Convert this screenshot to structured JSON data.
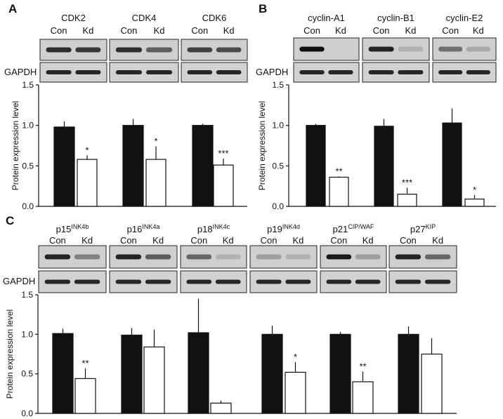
{
  "panels": [
    {
      "letter": "A",
      "ylabel": "Protein expression level",
      "loading_label": "GAPDH",
      "lane_labels": [
        "Con",
        "Kd"
      ],
      "proteins": [
        {
          "name": "CDK2",
          "sup": ""
        },
        {
          "name": "CDK4",
          "sup": ""
        },
        {
          "name": "CDK6",
          "sup": ""
        }
      ],
      "chart_data": {
        "type": "bar",
        "categories": [
          "CDK2",
          "CDK4",
          "CDK6"
        ],
        "series": [
          {
            "name": "Con",
            "values": [
              0.98,
              1.0,
              1.0
            ],
            "errors": [
              0.07,
              0.08,
              0.02
            ],
            "color": "#111111"
          },
          {
            "name": "Kd",
            "values": [
              0.58,
              0.58,
              0.51
            ],
            "errors": [
              0.05,
              0.16,
              0.08
            ],
            "color": "#ffffff"
          }
        ],
        "significance": [
          "*",
          "*",
          "***"
        ],
        "ylim": [
          0,
          1.5
        ],
        "yticks": [
          "0.0",
          "0.5",
          "1.0",
          "1.5"
        ]
      }
    },
    {
      "letter": "B",
      "ylabel": "Protein expression level",
      "loading_label": "GAPDH",
      "lane_labels": [
        "Con",
        "Kd"
      ],
      "proteins": [
        {
          "name": "cyclin-A1",
          "sup": ""
        },
        {
          "name": "cyclin-B1",
          "sup": ""
        },
        {
          "name": "cyclin-E2",
          "sup": ""
        }
      ],
      "chart_data": {
        "type": "bar",
        "categories": [
          "cyclin-A1",
          "cyclin-B1",
          "cyclin-E2"
        ],
        "series": [
          {
            "name": "Con",
            "values": [
              1.0,
              0.99,
              1.03
            ],
            "errors": [
              0.02,
              0.09,
              0.18
            ],
            "color": "#111111"
          },
          {
            "name": "Kd",
            "values": [
              0.36,
              0.15,
              0.09
            ],
            "errors": [
              0.01,
              0.08,
              0.05
            ],
            "color": "#ffffff"
          }
        ],
        "significance": [
          "**",
          "***",
          "*"
        ],
        "ylim": [
          0,
          1.5
        ],
        "yticks": [
          "0.0",
          "0.5",
          "1.0",
          "1.5"
        ]
      }
    },
    {
      "letter": "C",
      "ylabel": "Protein expression level",
      "loading_label": "GAPDH",
      "lane_labels": [
        "Con",
        "Kd"
      ],
      "proteins": [
        {
          "name": "p15",
          "sup": "INK4b"
        },
        {
          "name": "p16",
          "sup": "INK4a"
        },
        {
          "name": "p18",
          "sup": "INK4c"
        },
        {
          "name": "p19",
          "sup": "INK4d"
        },
        {
          "name": "p21",
          "sup": "CIP/WAF"
        },
        {
          "name": "p27",
          "sup": "KIP"
        }
      ],
      "chart_data": {
        "type": "bar",
        "categories": [
          "p15INK4b",
          "p16INK4a",
          "p18INK4c",
          "p19INK4d",
          "p21CIP/WAF",
          "p27KIP"
        ],
        "series": [
          {
            "name": "Con",
            "values": [
              1.01,
              0.99,
              1.02,
              1.0,
              1.0,
              1.0
            ],
            "errors": [
              0.06,
              0.09,
              0.43,
              0.11,
              0.03,
              0.1
            ],
            "color": "#111111"
          },
          {
            "name": "Kd",
            "values": [
              0.44,
              0.84,
              0.13,
              0.52,
              0.4,
              0.75
            ],
            "errors": [
              0.13,
              0.22,
              0.03,
              0.13,
              0.13,
              0.2
            ],
            "color": "#ffffff"
          }
        ],
        "significance": [
          "**",
          "",
          "",
          "*",
          "**",
          ""
        ],
        "ylim": [
          0,
          1.5
        ],
        "yticks": [
          "0.0",
          "0.5",
          "1.0",
          "1.5"
        ]
      }
    }
  ]
}
